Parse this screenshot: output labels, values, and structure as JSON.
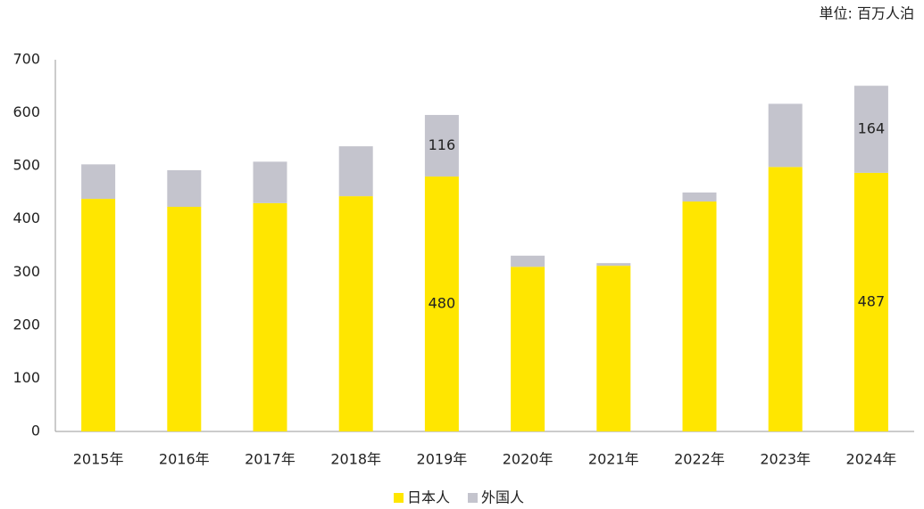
{
  "chart_data": {
    "type": "stacked_bar",
    "unit_note": "単位: 百万人泊",
    "categories": [
      "2015年",
      "2016年",
      "2017年",
      "2018年",
      "2019年",
      "2020年",
      "2021年",
      "2022年",
      "2023年",
      "2024年"
    ],
    "series": [
      {
        "name": "日本人",
        "color": "#ffe600",
        "values": [
          438,
          423,
          430,
          443,
          480,
          310,
          312,
          433,
          498,
          487
        ],
        "value_labels": [
          null,
          null,
          null,
          null,
          "480",
          null,
          null,
          null,
          null,
          "487"
        ]
      },
      {
        "name": "外国人",
        "color": "#c4c4cd",
        "values": [
          65,
          69,
          78,
          94,
          116,
          21,
          5,
          17,
          119,
          164
        ],
        "value_labels": [
          null,
          null,
          null,
          null,
          "116",
          null,
          null,
          null,
          null,
          "164"
        ]
      }
    ],
    "ylim": [
      0,
      700
    ],
    "yticks": [
      0,
      100,
      200,
      300,
      400,
      500,
      600,
      700
    ],
    "grid": false,
    "legend": "bottom"
  }
}
